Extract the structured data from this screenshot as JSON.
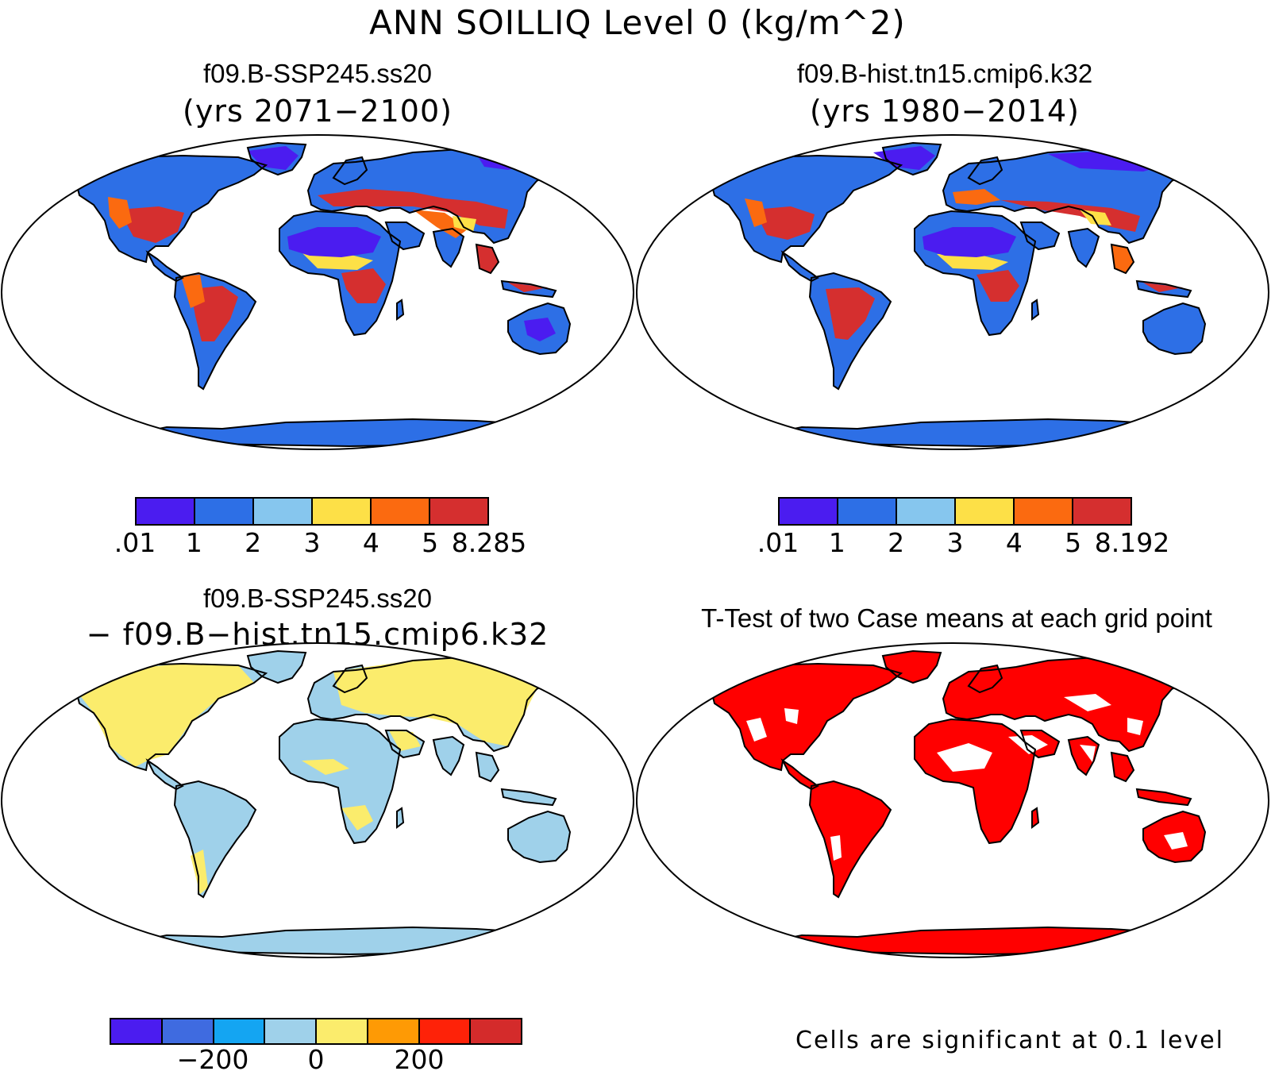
{
  "title": "ANN SOILLIQ Level 0 (kg/m^2)",
  "panels": {
    "top_left": {
      "case": "f09.B-SSP245.ss20",
      "years": "(yrs 2071−2100)"
    },
    "top_right": {
      "case": "f09.B-hist.tn15.cmip6.k32",
      "years": "(yrs 1980−2014)"
    },
    "bottom_left": {
      "case": "f09.B-SSP245.ss20",
      "minus": "− f09.B−hist.tn15.cmip6.k32"
    },
    "bottom_right": {
      "title": "T-Test of two Case means at each grid point",
      "note": "Cells are significant at 0.1 level"
    }
  },
  "colorbars": {
    "top_left": {
      "colors": [
        "#4b1cf0",
        "#2d6fe6",
        "#86c6ee",
        "#fde047",
        "#fb6a10",
        "#d52f2f"
      ],
      "labels": [
        ".01",
        "1",
        "2",
        "3",
        "4",
        "5",
        "8.285"
      ]
    },
    "top_right": {
      "colors": [
        "#4b1cf0",
        "#2d6fe6",
        "#86c6ee",
        "#fde047",
        "#fb6a10",
        "#d52f2f"
      ],
      "labels": [
        ".01",
        "1",
        "2",
        "3",
        "4",
        "5",
        "8.192"
      ]
    },
    "bottom_left": {
      "colors": [
        "#4b1cf0",
        "#3f6be0",
        "#14a5f2",
        "#9fd1ea",
        "#fbec6c",
        "#fe9a05",
        "#fe2208",
        "#d42b2b"
      ],
      "labels": [
        "−200",
        "0",
        "200"
      ]
    }
  },
  "map_colors": {
    "ocean": "#ffffff",
    "significant": "#ff0000",
    "dry": "#4b1cf0",
    "blue": "#2d6fe6",
    "lightblue": "#86c6ee",
    "yellow": "#fde047",
    "orange": "#fb6a10",
    "red": "#d52f2f",
    "diff_pos": "#fbec6c",
    "diff_neg": "#9fd1ea"
  }
}
